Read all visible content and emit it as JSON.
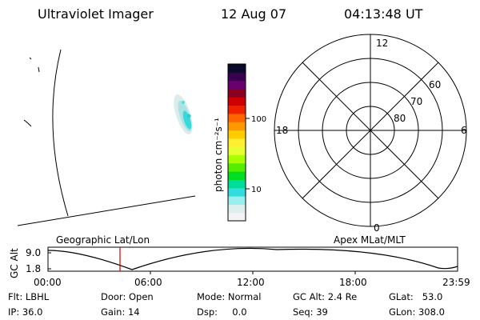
{
  "header": {
    "instrument": "Ultraviolet Imager",
    "date": "12 Aug 07",
    "time": "04:13:48 UT"
  },
  "colorbar": {
    "unit_label": "photon cm⁻²s⁻¹",
    "tick_labels": [
      "100",
      "10"
    ],
    "colors": [
      "#0a0a2a",
      "#3a0050",
      "#6a0070",
      "#8a0020",
      "#cc0000",
      "#ee2200",
      "#ff6600",
      "#ff9900",
      "#ffcc00",
      "#ffee33",
      "#e6ff33",
      "#aaff00",
      "#55ee00",
      "#00dd22",
      "#00dd99",
      "#33dddd",
      "#99eeee",
      "#ddeeee",
      "#f3f3f3"
    ]
  },
  "polar_plot": {
    "mlt_labels": {
      "top": "12",
      "left": "18",
      "right": "6",
      "bottom": "0"
    },
    "lat_labels": [
      "60",
      "70",
      "80"
    ]
  },
  "timeline": {
    "left_label": "Geographic Lat/Lon",
    "right_label": "Apex MLat/MLT",
    "y_axis_label": "GC Alt",
    "y_ticks": [
      "9.0",
      "1.8"
    ],
    "x_ticks": [
      "00:00",
      "06:00",
      "12:00",
      "18:00",
      "23:59"
    ],
    "cursor_color": "#cc0000"
  },
  "status": {
    "flt": "Flt: LBHL",
    "ip": "IP: 36.0",
    "door": "Door: Open",
    "gain": "Gain: 14",
    "mode": "Mode: Normal",
    "dsp": "Dsp:     0.0",
    "gc_alt": "GC Alt: 2.4 Re",
    "seq": "Seq: 39",
    "glat": "GLat:   53.0",
    "glon": "GLon: 308.0"
  }
}
